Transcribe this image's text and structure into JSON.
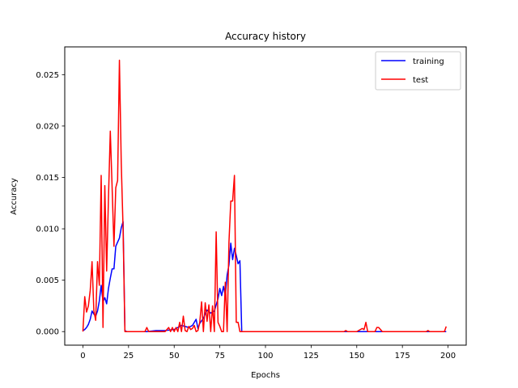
{
  "chart_data": {
    "type": "line",
    "title": "Accuracy history",
    "xlabel": "Epochs",
    "ylabel": "Accuracy",
    "xlim": [
      -9.95,
      209.95
    ],
    "ylim": [
      -0.00132,
      0.0277
    ],
    "xticks": [
      0,
      25,
      50,
      75,
      100,
      125,
      150,
      175,
      200
    ],
    "yticks": [
      0.0,
      0.005,
      0.01,
      0.015,
      0.02,
      0.025
    ],
    "ytick_labels": [
      "0.000",
      "0.005",
      "0.010",
      "0.015",
      "0.020",
      "0.025"
    ],
    "grid": false,
    "legend": "top-right",
    "series": [
      {
        "name": "training",
        "color": "#0000ff",
        "points": [
          [
            0,
            0.0001
          ],
          [
            1,
            0.0002
          ],
          [
            2,
            0.0004
          ],
          [
            3,
            0.0007
          ],
          [
            4,
            0.0012
          ],
          [
            5,
            0.002
          ],
          [
            6,
            0.0017
          ],
          [
            7,
            0.0015
          ],
          [
            8,
            0.002
          ],
          [
            9,
            0.003
          ],
          [
            10,
            0.0045
          ],
          [
            11,
            0.0029
          ],
          [
            12,
            0.0033
          ],
          [
            13,
            0.0027
          ],
          [
            14,
            0.0042
          ],
          [
            15,
            0.0052
          ],
          [
            16,
            0.0061
          ],
          [
            17,
            0.0061
          ],
          [
            18,
            0.0083
          ],
          [
            19,
            0.0087
          ],
          [
            20,
            0.0091
          ],
          [
            21,
            0.0101
          ],
          [
            22,
            0.0107
          ],
          [
            23,
            0.0001
          ],
          [
            24,
            0.0
          ],
          [
            25,
            0.0
          ],
          [
            30,
            0.0
          ],
          [
            35,
            0.0
          ],
          [
            40,
            0.0001
          ],
          [
            45,
            0.0001
          ],
          [
            50,
            0.0002
          ],
          [
            52,
            0.0004
          ],
          [
            54,
            0.0006
          ],
          [
            56,
            0.0005
          ],
          [
            58,
            0.0004
          ],
          [
            60,
            0.0006
          ],
          [
            62,
            0.0012
          ],
          [
            63,
            0.0003
          ],
          [
            64,
            0.0008
          ],
          [
            66,
            0.0013
          ],
          [
            68,
            0.0021
          ],
          [
            70,
            0.0018
          ],
          [
            72,
            0.002
          ],
          [
            74,
            0.0032
          ],
          [
            75,
            0.0042
          ],
          [
            76,
            0.0035
          ],
          [
            77,
            0.0044
          ],
          [
            78,
            0.0035
          ],
          [
            79,
            0.0055
          ],
          [
            80,
            0.0065
          ],
          [
            81,
            0.0086
          ],
          [
            82,
            0.007
          ],
          [
            83,
            0.0081
          ],
          [
            84,
            0.0074
          ],
          [
            85,
            0.0066
          ],
          [
            86,
            0.0069
          ],
          [
            87,
            0.0
          ],
          [
            90,
            0.0
          ],
          [
            100,
            0.0
          ],
          [
            125,
            0.0
          ],
          [
            150,
            0.0
          ],
          [
            175,
            0.0
          ],
          [
            199,
            0.0
          ]
        ]
      },
      {
        "name": "test",
        "color": "#ff0000",
        "points": [
          [
            0,
            0.0
          ],
          [
            1,
            0.0034
          ],
          [
            2,
            0.0019
          ],
          [
            3,
            0.0025
          ],
          [
            4,
            0.004
          ],
          [
            5,
            0.0068
          ],
          [
            6,
            0.002
          ],
          [
            7,
            0.0011
          ],
          [
            8,
            0.0068
          ],
          [
            9,
            0.0045
          ],
          [
            10,
            0.0152
          ],
          [
            11,
            0.0004
          ],
          [
            12,
            0.0142
          ],
          [
            13,
            0.0059
          ],
          [
            14,
            0.013
          ],
          [
            15,
            0.0195
          ],
          [
            16,
            0.014
          ],
          [
            17,
            0.0083
          ],
          [
            18,
            0.014
          ],
          [
            19,
            0.0147
          ],
          [
            20,
            0.0264
          ],
          [
            21,
            0.0164
          ],
          [
            22,
            0.01
          ],
          [
            23,
            0.0
          ],
          [
            25,
            0.0
          ],
          [
            30,
            0.0
          ],
          [
            34,
            0.0
          ],
          [
            35,
            0.0004
          ],
          [
            36,
            0.0
          ],
          [
            40,
            0.0
          ],
          [
            45,
            0.0
          ],
          [
            47,
            0.0004
          ],
          [
            48,
            0.0
          ],
          [
            49,
            0.0004
          ],
          [
            50,
            0.0
          ],
          [
            51,
            0.0004
          ],
          [
            52,
            0.0
          ],
          [
            53,
            0.0009
          ],
          [
            54,
            0.0
          ],
          [
            55,
            0.0015
          ],
          [
            56,
            0.0001
          ],
          [
            57,
            0.0
          ],
          [
            58,
            0.0005
          ],
          [
            59,
            0.0002
          ],
          [
            60,
            0.0003
          ],
          [
            61,
            0.0006
          ],
          [
            62,
            0.0
          ],
          [
            63,
            0.0001
          ],
          [
            64,
            0.0009
          ],
          [
            65,
            0.0029
          ],
          [
            66,
            0.0
          ],
          [
            67,
            0.0028
          ],
          [
            68,
            0.001
          ],
          [
            69,
            0.0026
          ],
          [
            70,
            0.0
          ],
          [
            71,
            0.0025
          ],
          [
            72,
            0.0
          ],
          [
            73,
            0.0097
          ],
          [
            74,
            0.0009
          ],
          [
            75,
            0.0005
          ],
          [
            76,
            0.0
          ],
          [
            77,
            0.0
          ],
          [
            78,
            0.0048
          ],
          [
            79,
            0.0
          ],
          [
            80,
            0.0087
          ],
          [
            81,
            0.0127
          ],
          [
            82,
            0.0127
          ],
          [
            83,
            0.0152
          ],
          [
            84,
            0.0009
          ],
          [
            85,
            0.0009
          ],
          [
            86,
            0.0
          ],
          [
            90,
            0.0
          ],
          [
            100,
            0.0
          ],
          [
            125,
            0.0
          ],
          [
            143,
            0.0
          ],
          [
            144,
            0.0001
          ],
          [
            145,
            0.0
          ],
          [
            150,
            0.0
          ],
          [
            153,
            0.0003
          ],
          [
            154,
            0.0002
          ],
          [
            155,
            0.0009
          ],
          [
            156,
            0.0
          ],
          [
            160,
            0.0
          ],
          [
            161,
            0.0004
          ],
          [
            162,
            0.0004
          ],
          [
            163,
            0.0002
          ],
          [
            164,
            0.0
          ],
          [
            175,
            0.0
          ],
          [
            188,
            0.0
          ],
          [
            189,
            0.0001
          ],
          [
            190,
            0.0
          ],
          [
            198,
            0.0
          ],
          [
            199,
            0.0005
          ]
        ]
      }
    ]
  }
}
